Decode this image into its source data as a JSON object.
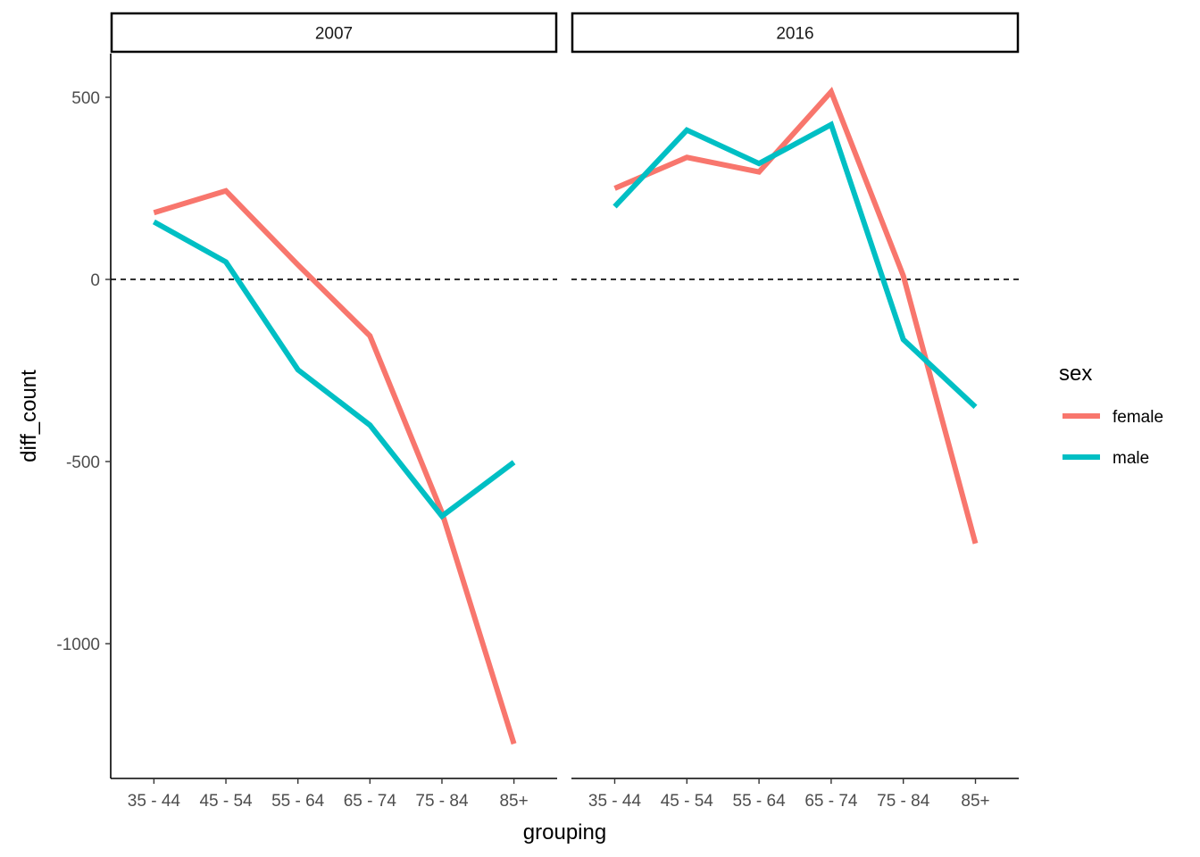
{
  "chart_data": {
    "type": "line",
    "facets": [
      "2007",
      "2016"
    ],
    "categories": [
      "35 - 44",
      "45 - 54",
      "55 - 64",
      "65 - 74",
      "75 - 84",
      "85+"
    ],
    "xlabel": "grouping",
    "ylabel": "diff_count",
    "ylim": [
      -1370,
      620
    ],
    "yticks": [
      500,
      0,
      -500,
      -1000
    ],
    "ytick_labels": [
      "500",
      "0",
      "-500",
      "-1000"
    ],
    "reference_line": {
      "y": 0,
      "style": "dashed"
    },
    "legend": {
      "title": "sex",
      "position": "right"
    },
    "series": [
      {
        "name": "female",
        "color": "#F8766D",
        "values": {
          "2007": [
            183,
            243,
            40,
            -155,
            -640,
            -1275
          ],
          "2016": [
            250,
            335,
            295,
            515,
            10,
            -725
          ]
        }
      },
      {
        "name": "male",
        "color": "#00BFC4",
        "values": {
          "2007": [
            158,
            48,
            -248,
            -400,
            -650,
            -502
          ],
          "2016": [
            200,
            410,
            318,
            425,
            -165,
            -350
          ]
        }
      }
    ]
  }
}
